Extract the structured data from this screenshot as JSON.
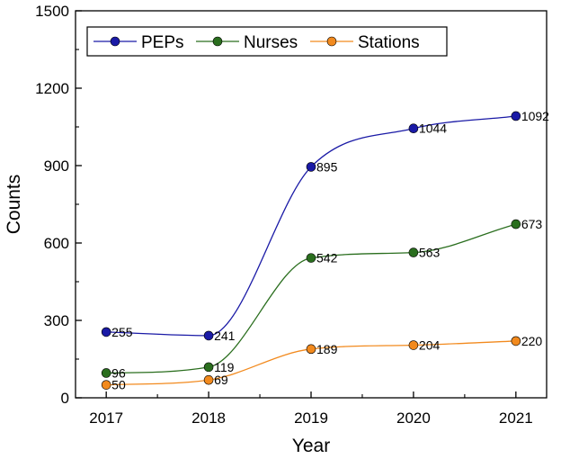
{
  "chart_data": {
    "type": "line",
    "title": "",
    "xlabel": "Year",
    "ylabel": "Counts",
    "x": [
      2017,
      2018,
      2019,
      2020,
      2021
    ],
    "x_tick_labels": [
      "2017",
      "2018",
      "2019",
      "2020",
      "2021"
    ],
    "xlim": [
      2016.7,
      2021.3
    ],
    "ylim": [
      0,
      1500
    ],
    "y_ticks": [
      0,
      300,
      600,
      900,
      1200,
      1500
    ],
    "y_tick_labels": [
      "0",
      "300",
      "600",
      "900",
      "1200",
      "1500"
    ],
    "grid": false,
    "legend_position": "top-left",
    "smooth": true,
    "series": [
      {
        "name": "PEPs",
        "values": [
          255,
          241,
          895,
          1044,
          1092
        ],
        "labels": [
          "255",
          "241",
          "895",
          "1044",
          "1092"
        ],
        "color": "#1a1aa6"
      },
      {
        "name": "Nurses",
        "values": [
          96,
          119,
          542,
          563,
          673
        ],
        "labels": [
          "96",
          "119",
          "542",
          "563",
          "673"
        ],
        "color": "#2a6e1e"
      },
      {
        "name": "Stations",
        "values": [
          50,
          69,
          189,
          204,
          220
        ],
        "labels": [
          "50",
          "69",
          "189",
          "204",
          "220"
        ],
        "color": "#f28a1e"
      }
    ]
  }
}
